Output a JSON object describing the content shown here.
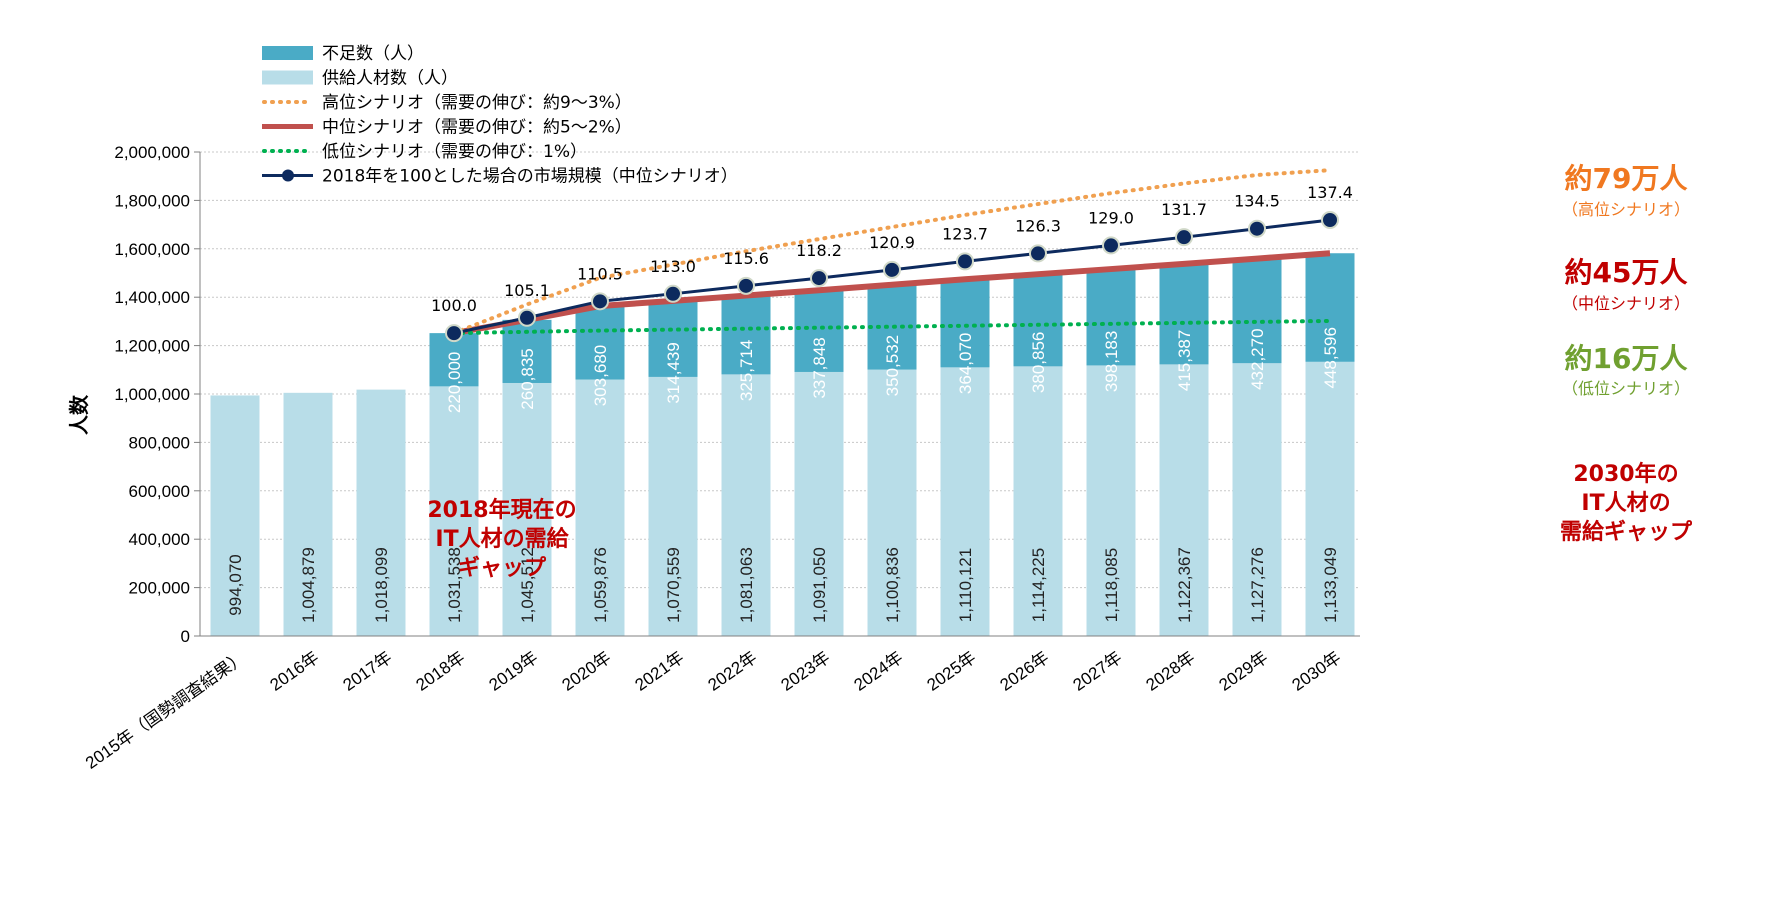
{
  "chart_data": {
    "type": "bar",
    "ylabel": "人数",
    "ylim": [
      0,
      2000000
    ],
    "ytick_step": 200000,
    "categories": [
      "2015年（国勢調査結果）",
      "2016年",
      "2017年",
      "2018年",
      "2019年",
      "2020年",
      "2021年",
      "2022年",
      "2023年",
      "2024年",
      "2025年",
      "2026年",
      "2027年",
      "2028年",
      "2029年",
      "2030年"
    ],
    "series": [
      {
        "name": "供給人材数（人）",
        "kind": "stacked-bar",
        "color": "#b8dde8",
        "values": [
          994070,
          1004879,
          1018099,
          1031538,
          1045512,
          1059876,
          1070559,
          1081063,
          1091050,
          1100836,
          1110121,
          1114225,
          1118085,
          1122367,
          1127276,
          1133049
        ],
        "labels": [
          "994,070",
          "1,004,879",
          "1,018,099",
          "1,031,538",
          "1,045,512",
          "1,059,876",
          "1,070,559",
          "1,081,063",
          "1,091,050",
          "1,100,836",
          "1,110,121",
          "1,114,225",
          "1,118,085",
          "1,122,367",
          "1,127,276",
          "1,133,049"
        ]
      },
      {
        "name": "不足数（人）",
        "kind": "stacked-bar",
        "color": "#4aabc6",
        "values": [
          null,
          null,
          null,
          220000,
          260835,
          303680,
          314439,
          325714,
          337848,
          350532,
          364070,
          380856,
          398183,
          415387,
          432270,
          448596
        ],
        "labels": [
          "",
          "",
          "",
          "220,000",
          "260,835",
          "303,680",
          "314,439",
          "325,714",
          "337,848",
          "350,532",
          "364,070",
          "380,856",
          "398,183",
          "415,387",
          "432,270",
          "448,596"
        ]
      },
      {
        "name": "高位シナリオ（需要の伸び：約9～3%）",
        "kind": "dotted-line",
        "color": "#f0a050",
        "values": [
          null,
          null,
          null,
          1251538,
          1370000,
          1480000,
          1535000,
          1590000,
          1640000,
          1690000,
          1740000,
          1785000,
          1830000,
          1870000,
          1905000,
          1925000
        ]
      },
      {
        "name": "中位シナリオ（需要の伸び：約5～2%）",
        "kind": "line",
        "color": "#c0504d",
        "values": [
          null,
          null,
          null,
          1251538,
          1306347,
          1363556,
          1384998,
          1406777,
          1428898,
          1451368,
          1474191,
          1495081,
          1516268,
          1537754,
          1559546,
          1581645
        ]
      },
      {
        "name": "低位シナリオ（需要の伸び：1%）",
        "kind": "dotted-line",
        "color": "#00b050",
        "values": [
          null,
          null,
          null,
          1251538,
          1257000,
          1262000,
          1266000,
          1270000,
          1274000,
          1278000,
          1282000,
          1286000,
          1290000,
          1294000,
          1298000,
          1302000
        ]
      },
      {
        "name": "2018年を100とした場合の市場規模（中位シナリオ）",
        "kind": "line-markers",
        "color": "#0d2a5e",
        "index_values": [
          null,
          null,
          null,
          100.0,
          105.1,
          110.5,
          113.0,
          115.6,
          118.2,
          120.9,
          123.7,
          126.3,
          129.0,
          131.7,
          134.5,
          137.4
        ],
        "labels": [
          "",
          "",
          "",
          "100.0",
          "105.1",
          "110.5",
          "113.0",
          "115.6",
          "118.2",
          "120.9",
          "123.7",
          "126.3",
          "129.0",
          "131.7",
          "134.5",
          "137.4"
        ],
        "plot_values": [
          null,
          null,
          null,
          1251538,
          1315000,
          1383000,
          1414000,
          1447000,
          1479000,
          1513000,
          1548000,
          1581000,
          1614000,
          1648000,
          1683000,
          1719000
        ]
      }
    ],
    "legend": [
      {
        "label": "不足数（人）",
        "style": "box",
        "color": "#4aabc6"
      },
      {
        "label": "供給人材数（人）",
        "style": "box",
        "color": "#b8dde8"
      },
      {
        "label": "高位シナリオ（需要の伸び：約9～3%）",
        "style": "dotted",
        "color": "#f0a050"
      },
      {
        "label": "中位シナリオ（需要の伸び：約5～2%）",
        "style": "solid",
        "color": "#c0504d"
      },
      {
        "label": "低位シナリオ（需要の伸び：1%）",
        "style": "dotted",
        "color": "#00b050"
      },
      {
        "label": "2018年を100とした場合の市場規模（中位シナリオ）",
        "style": "marker",
        "color": "#0d2a5e"
      }
    ],
    "annotations": {
      "high_big": "約79万人",
      "high_small": "（高位シナリオ）",
      "high_color": "#f07820",
      "mid_big": "約45万人",
      "mid_small": "（中位シナリオ）",
      "mid_color": "#c00000",
      "low_big": "約16万人",
      "low_small": "（低位シナリオ）",
      "low_color": "#70a030",
      "gap2018": [
        "2018年現在の",
        "IT人材の需給",
        "ギャップ"
      ],
      "gap2030": [
        "2030年の",
        "IT人材の",
        "需給ギャップ"
      ],
      "gap_color": "#c00000"
    }
  }
}
